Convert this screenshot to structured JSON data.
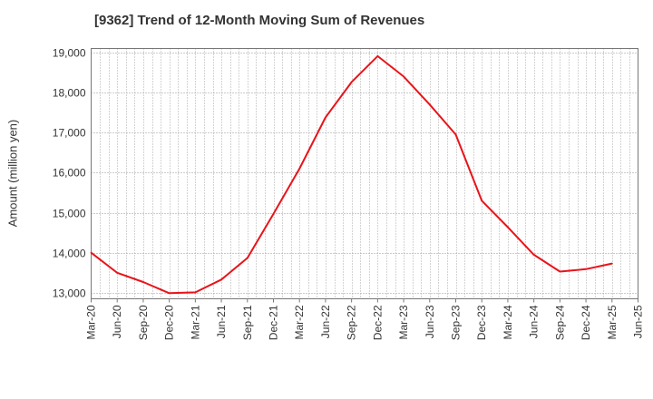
{
  "chart_data": {
    "type": "line",
    "title": "[9362]  Trend of 12-Month Moving Sum of Revenues",
    "ylabel": "Amount (million yen)",
    "xlabel": "",
    "ylim": [
      12850,
      19100
    ],
    "yticks": [
      "13,000",
      "14,000",
      "15,000",
      "16,000",
      "17,000",
      "18,000",
      "19,000"
    ],
    "ytick_values": [
      13000,
      14000,
      15000,
      16000,
      17000,
      18000,
      19000
    ],
    "xticks": [
      "Mar-20",
      "Jun-20",
      "Sep-20",
      "Dec-20",
      "Mar-21",
      "Jun-21",
      "Sep-21",
      "Dec-21",
      "Mar-22",
      "Jun-22",
      "Sep-22",
      "Dec-22",
      "Mar-23",
      "Jun-23",
      "Sep-23",
      "Dec-23",
      "Mar-24",
      "Jun-24",
      "Sep-24",
      "Dec-24",
      "Mar-25",
      "Jun-25"
    ],
    "grid": true,
    "line_color": "#e8141a",
    "series": [
      {
        "values": [
          14000,
          13500,
          13270,
          12990,
          13010,
          13330,
          13870,
          14970,
          16100,
          17380,
          18260,
          18910,
          18400,
          17700,
          16950,
          15300,
          14640,
          13950,
          13530,
          13590,
          13730
        ]
      }
    ]
  }
}
